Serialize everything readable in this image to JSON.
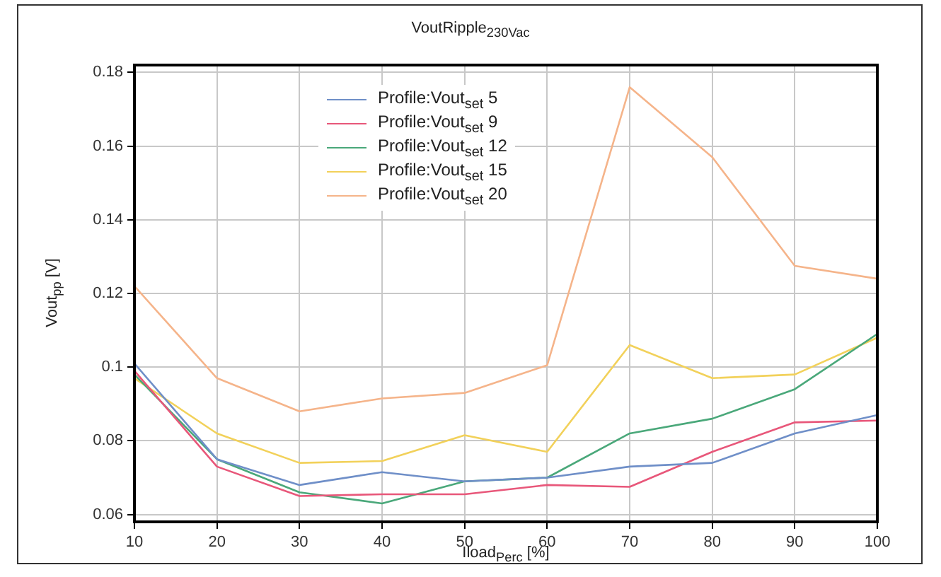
{
  "chart_data": {
    "type": "line",
    "title": "VoutRipple$_{230Vac}$",
    "xlabel": "Iload$_{Perc}$ [%]",
    "ylabel": "Vout$_{pp}$ [V]",
    "x": [
      10,
      20,
      30,
      40,
      50,
      60,
      70,
      80,
      90,
      100
    ],
    "series": [
      {
        "name": "Profile:Vout$_{set}$ 5",
        "color": "#6f8fc8",
        "values": [
          0.101,
          0.075,
          0.068,
          0.0715,
          0.069,
          0.07,
          0.073,
          0.074,
          0.082,
          0.087
        ]
      },
      {
        "name": "Profile:Vout$_{set}$ 9",
        "color": "#e8577a",
        "values": [
          0.099,
          0.073,
          0.065,
          0.0655,
          0.0655,
          0.068,
          0.0675,
          0.077,
          0.085,
          0.0855
        ]
      },
      {
        "name": "Profile:Vout$_{set}$ 12",
        "color": "#4aa87a",
        "values": [
          0.098,
          0.075,
          0.066,
          0.063,
          0.069,
          0.07,
          0.082,
          0.086,
          0.094,
          0.109
        ]
      },
      {
        "name": "Profile:Vout$_{set}$ 15",
        "color": "#f2d15a",
        "values": [
          0.097,
          0.082,
          0.074,
          0.0745,
          0.0815,
          0.077,
          0.106,
          0.097,
          0.098,
          0.108
        ]
      },
      {
        "name": "Profile:Vout$_{set}$ 20",
        "color": "#f5b48a",
        "values": [
          0.122,
          0.097,
          0.088,
          0.0915,
          0.093,
          0.1005,
          0.176,
          0.157,
          0.1275,
          0.124
        ]
      }
    ],
    "xlim": [
      10,
      100
    ],
    "xticks": [
      10,
      20,
      30,
      40,
      50,
      60,
      70,
      80,
      90,
      100
    ],
    "ylim": [
      0.058,
      0.182
    ],
    "yticks": [
      0.06,
      0.08,
      0.1,
      0.12,
      0.14,
      0.16,
      0.18
    ],
    "grid": true,
    "legend": "top",
    "marker": "none",
    "line_style": "solid"
  }
}
